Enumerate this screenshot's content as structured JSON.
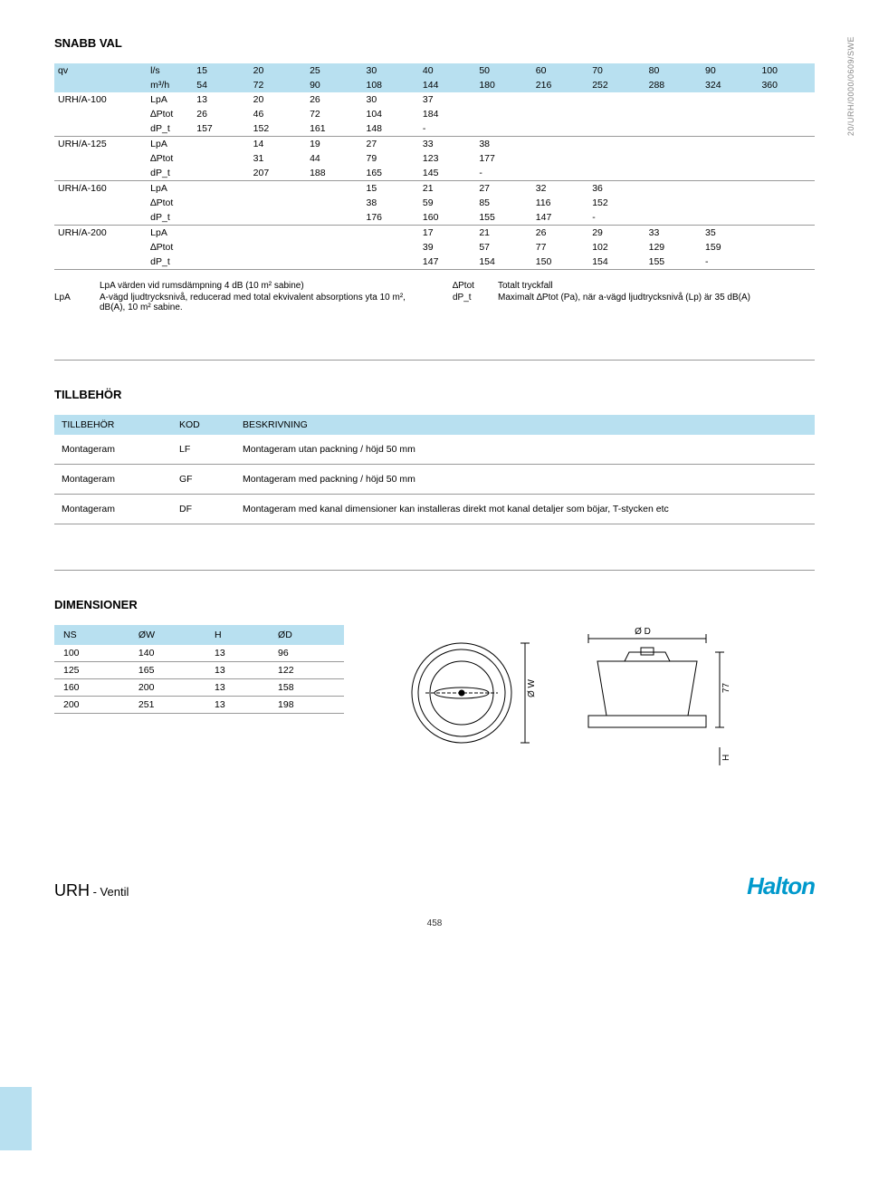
{
  "side_text": "20/URH/0000/0609/SWE",
  "snabb": {
    "title": "SNABB VAL",
    "header": {
      "qv": "qv",
      "units": [
        "l/s",
        "m³/h"
      ],
      "cols_ls": [
        "15",
        "20",
        "25",
        "30",
        "40",
        "50",
        "60",
        "70",
        "80",
        "90",
        "100"
      ],
      "cols_m3h": [
        "54",
        "72",
        "90",
        "108",
        "144",
        "180",
        "216",
        "252",
        "288",
        "324",
        "360"
      ]
    },
    "rows": [
      {
        "model": "URH/A-100",
        "lines": [
          {
            "label": "LpA",
            "vals": [
              "13",
              "20",
              "26",
              "30",
              "37",
              "",
              "",
              "",
              "",
              "",
              ""
            ]
          },
          {
            "label": "∆Ptot",
            "vals": [
              "26",
              "46",
              "72",
              "104",
              "184",
              "",
              "",
              "",
              "",
              "",
              ""
            ]
          },
          {
            "label": "dP_t",
            "vals": [
              "157",
              "152",
              "161",
              "148",
              "-",
              "",
              "",
              "",
              "",
              "",
              ""
            ]
          }
        ]
      },
      {
        "model": "URH/A-125",
        "lines": [
          {
            "label": "LpA",
            "vals": [
              "",
              "14",
              "19",
              "27",
              "33",
              "38",
              "",
              "",
              "",
              "",
              ""
            ]
          },
          {
            "label": "∆Ptot",
            "vals": [
              "",
              "31",
              "44",
              "79",
              "123",
              "177",
              "",
              "",
              "",
              "",
              ""
            ]
          },
          {
            "label": "dP_t",
            "vals": [
              "",
              "207",
              "188",
              "165",
              "145",
              "-",
              "",
              "",
              "",
              "",
              ""
            ]
          }
        ]
      },
      {
        "model": "URH/A-160",
        "lines": [
          {
            "label": "LpA",
            "vals": [
              "",
              "",
              "",
              "15",
              "21",
              "27",
              "32",
              "36",
              "",
              "",
              ""
            ]
          },
          {
            "label": "∆Ptot",
            "vals": [
              "",
              "",
              "",
              "38",
              "59",
              "85",
              "116",
              "152",
              "",
              "",
              ""
            ]
          },
          {
            "label": "dP_t",
            "vals": [
              "",
              "",
              "",
              "176",
              "160",
              "155",
              "147",
              "-",
              "",
              "",
              ""
            ]
          }
        ]
      },
      {
        "model": "URH/A-200",
        "lines": [
          {
            "label": "LpA",
            "vals": [
              "",
              "",
              "",
              "",
              "17",
              "21",
              "26",
              "29",
              "33",
              "35",
              ""
            ]
          },
          {
            "label": "∆Ptot",
            "vals": [
              "",
              "",
              "",
              "",
              "39",
              "57",
              "77",
              "102",
              "129",
              "159",
              ""
            ]
          },
          {
            "label": "dP_t",
            "vals": [
              "",
              "",
              "",
              "",
              "147",
              "154",
              "150",
              "154",
              "155",
              "-",
              ""
            ]
          }
        ]
      }
    ],
    "notes_left": [
      {
        "k": "",
        "v": "LpA värden vid rumsdämpning 4 dB (10 m² sabine)"
      },
      {
        "k": "LpA",
        "v": "A-vägd ljudtrycksnivå, reducerad med total ekvivalent absorptions yta 10 m², dB(A), 10 m² sabine."
      }
    ],
    "notes_right": [
      {
        "k": "∆Ptot",
        "v": "Totalt tryckfall"
      },
      {
        "k": "dP_t",
        "v": "Maximalt ∆Ptot (Pa), när a-vägd ljudtrycksnivå (Lp) är 35 dB(A)"
      }
    ]
  },
  "tillbehor": {
    "title": "TILLBEHÖR",
    "headers": [
      "TILLBEHÖR",
      "KOD",
      "BESKRIVNING"
    ],
    "rows": [
      [
        "Montageram",
        "LF",
        "Montageram utan packning / höjd 50 mm"
      ],
      [
        "Montageram",
        "GF",
        "Montageram med packning / höjd 50 mm"
      ],
      [
        "Montageram",
        "DF",
        "Montageram med kanal dimensioner kan installeras direkt mot kanal detaljer som böjar, T-stycken etc"
      ]
    ]
  },
  "dimensioner": {
    "title": "DIMENSIONER",
    "headers": [
      "NS",
      "ØW",
      "H",
      "ØD"
    ],
    "rows": [
      [
        "100",
        "140",
        "13",
        "96"
      ],
      [
        "125",
        "165",
        "13",
        "122"
      ],
      [
        "160",
        "200",
        "13",
        "158"
      ],
      [
        "200",
        "251",
        "13",
        "198"
      ]
    ],
    "dim_labels": {
      "od": "Ø D",
      "ow": "Ø W",
      "h": "H",
      "v77": "77"
    }
  },
  "footer": {
    "brand": "URH",
    "sub": " - Ventil",
    "logo": "Halton"
  },
  "pagenum": "458",
  "colors": {
    "header_bg": "#b8e0f0",
    "border": "#999999",
    "logo": "#0099cc"
  }
}
